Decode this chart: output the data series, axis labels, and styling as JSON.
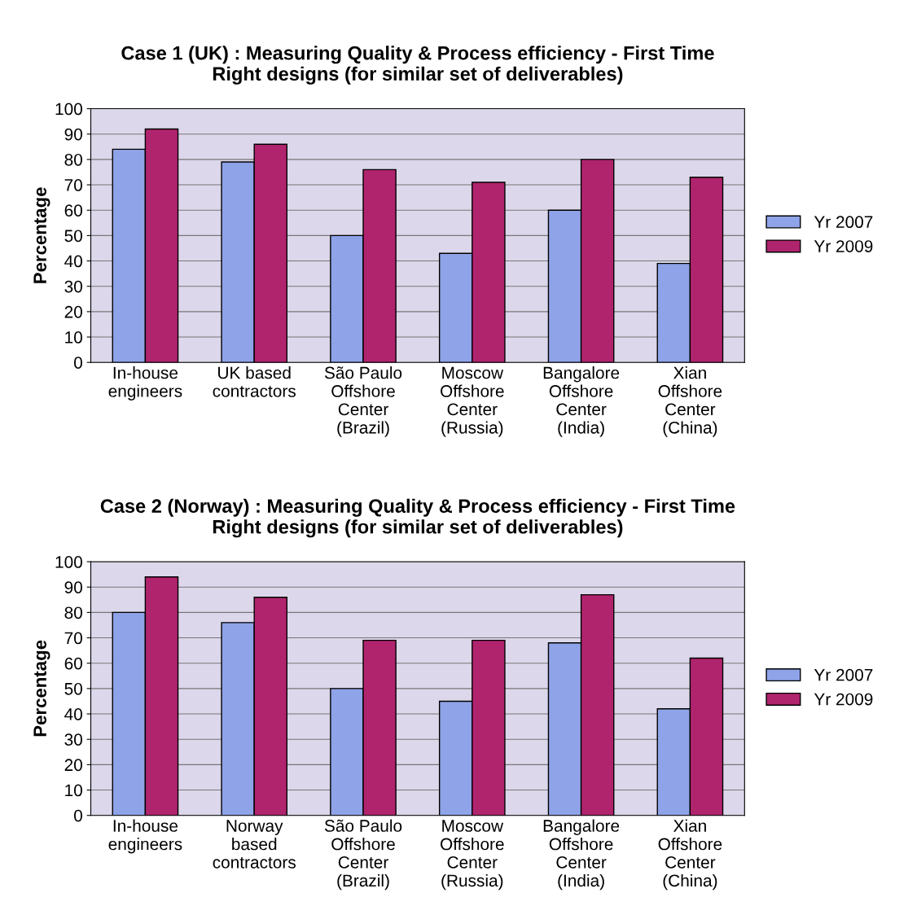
{
  "chart_data": [
    {
      "type": "bar",
      "title": "Case 1 (UK) : Measuring Quality & Process efficiency - First Time\nRight designs (for similar set of deliverables)",
      "ylabel": "Percentage",
      "categories": [
        "In-house\nengineers",
        "UK based\ncontractors",
        "São Paulo\nOffshore\nCenter\n(Brazil)",
        "Moscow\nOffshore\nCenter\n(Russia)",
        "Bangalore\nOffshore\nCenter\n(India)",
        "Xian\nOffshore\nCenter\n(China)"
      ],
      "series": [
        {
          "name": "Yr 2007",
          "color": "#8fa3e8",
          "values": [
            84,
            79,
            50,
            43,
            60,
            39
          ]
        },
        {
          "name": "Yr 2009",
          "color": "#b0246e",
          "values": [
            92,
            86,
            76,
            71,
            80,
            73
          ]
        }
      ],
      "ylim": [
        0,
        100
      ],
      "yticks": [
        0,
        10,
        20,
        30,
        40,
        50,
        60,
        70,
        80,
        90,
        100
      ],
      "grid": "y",
      "legend": "right"
    },
    {
      "type": "bar",
      "title": "Case 2 (Norway) : Measuring Quality & Process efficiency - First Time\nRight designs (for similar set of deliverables)",
      "ylabel": "Percentage",
      "categories": [
        "In-house\nengineers",
        "Norway\nbased\ncontractors",
        "São Paulo\nOffshore\nCenter\n(Brazil)",
        "Moscow\nOffshore\nCenter\n(Russia)",
        "Bangalore\nOffshore\nCenter\n(India)",
        "Xian\nOffshore\nCenter\n(China)"
      ],
      "series": [
        {
          "name": "Yr 2007",
          "color": "#8fa3e8",
          "values": [
            80,
            76,
            50,
            45,
            68,
            42
          ]
        },
        {
          "name": "Yr 2009",
          "color": "#b0246e",
          "values": [
            94,
            86,
            69,
            69,
            87,
            62
          ]
        }
      ],
      "ylim": [
        0,
        100
      ],
      "yticks": [
        0,
        10,
        20,
        30,
        40,
        50,
        60,
        70,
        80,
        90,
        100
      ],
      "grid": "y",
      "legend": "right"
    }
  ]
}
